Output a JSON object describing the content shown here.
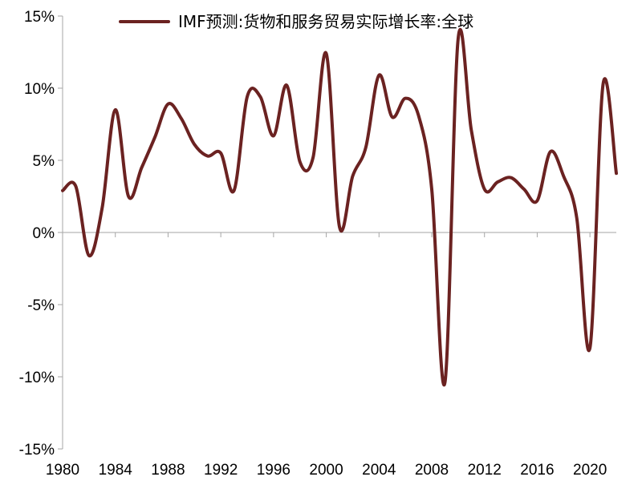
{
  "chart_data": {
    "type": "line",
    "title": "",
    "xlabel": "",
    "ylabel": "",
    "ylim": [
      -15,
      15
    ],
    "xlim": [
      1980,
      2022
    ],
    "yticks": [
      15,
      10,
      5,
      0,
      -5,
      -10,
      -15
    ],
    "ytick_labels": [
      "15%",
      "10%",
      "5%",
      "0%",
      "-5%",
      "-10%",
      "-15%"
    ],
    "xtick_labels": [
      "1980",
      "1984",
      "1988",
      "1992",
      "1996",
      "2000",
      "2004",
      "2008",
      "2012",
      "2016",
      "2020"
    ],
    "legend": {
      "position": "top",
      "label": "IMF预测:货物和服务贸易实际增长率:全球"
    },
    "series": [
      {
        "name": "IMF预测:货物和服务贸易实际增长率:全球",
        "color": "#6b2221",
        "x": [
          1980,
          1981,
          1982,
          1983,
          1984,
          1985,
          1986,
          1987,
          1988,
          1989,
          1990,
          1991,
          1992,
          1993,
          1994,
          1995,
          1996,
          1997,
          1998,
          1999,
          2000,
          2001,
          2002,
          2003,
          2004,
          2005,
          2006,
          2007,
          2008,
          2009,
          2010,
          2011,
          2012,
          2013,
          2014,
          2015,
          2016,
          2017,
          2018,
          2019,
          2020,
          2021,
          2022
        ],
        "values": [
          2.9,
          3.2,
          -1.6,
          1.7,
          8.5,
          2.5,
          4.5,
          6.6,
          8.9,
          7.9,
          6.1,
          5.3,
          5.5,
          2.9,
          9.4,
          9.4,
          6.7,
          10.2,
          4.9,
          5.2,
          12.4,
          0.4,
          3.9,
          5.9,
          10.9,
          8.0,
          9.3,
          8.1,
          3.0,
          -10.4,
          13.4,
          7.1,
          3.0,
          3.5,
          3.8,
          3.0,
          2.2,
          5.6,
          3.9,
          1.0,
          -8.0,
          10.3,
          4.1
        ]
      }
    ]
  }
}
